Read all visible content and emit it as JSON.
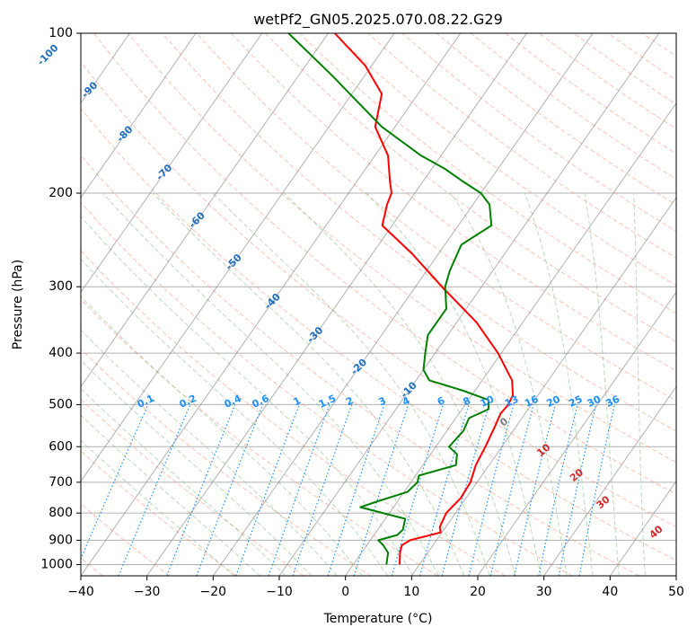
{
  "chart_data": {
    "type": "line",
    "title": "wetPf2_GN05.2025.070.08.22.G29",
    "xlabel": "Temperature (°C)",
    "ylabel": "Pressure (hPa)",
    "xlim": [
      -40,
      50
    ],
    "ylim": [
      1050,
      100
    ],
    "y_scale": "log",
    "x_ticks": [
      -40,
      -30,
      -20,
      -10,
      0,
      10,
      20,
      30,
      40,
      50
    ],
    "x_tick_labels": [
      "−40",
      "−30",
      "−20",
      "−10",
      "0",
      "10",
      "20",
      "30",
      "40",
      "50"
    ],
    "y_ticks": [
      1000,
      900,
      800,
      700,
      600,
      500,
      400,
      300,
      200,
      100
    ],
    "y_tick_labels": [
      "1000",
      "900",
      "800",
      "700",
      "600",
      "500",
      "400",
      "300",
      "200",
      "100"
    ],
    "grid": true,
    "series": [
      {
        "name": "",
        "color": "#ff0000",
        "points": [
          [
            1000,
            7.0
          ],
          [
            950,
            5.8
          ],
          [
            920,
            5.3
          ],
          [
            900,
            6.0
          ],
          [
            870,
            9.8
          ],
          [
            850,
            9.1
          ],
          [
            800,
            8.6
          ],
          [
            750,
            9.2
          ],
          [
            700,
            9.0
          ],
          [
            650,
            8.0
          ],
          [
            600,
            7.5
          ],
          [
            550,
            6.8
          ],
          [
            520,
            6.3
          ],
          [
            500,
            6.5
          ],
          [
            480,
            6.2
          ],
          [
            450,
            4.5
          ],
          [
            400,
            -0.5
          ],
          [
            350,
            -7.0
          ],
          [
            300,
            -16.0
          ],
          [
            260,
            -24.0
          ],
          [
            230,
            -31.5
          ],
          [
            210,
            -33.0
          ],
          [
            200,
            -33.5
          ],
          [
            190,
            -35.0
          ],
          [
            170,
            -38.0
          ],
          [
            150,
            -43.0
          ],
          [
            130,
            -45.5
          ],
          [
            115,
            -51.0
          ],
          [
            100,
            -59.0
          ]
        ]
      },
      {
        "name": "",
        "color": "#008000",
        "points": [
          [
            1000,
            5.0
          ],
          [
            950,
            4.0
          ],
          [
            920,
            2.5
          ],
          [
            900,
            1.2
          ],
          [
            880,
            3.5
          ],
          [
            860,
            3.8
          ],
          [
            820,
            3.0
          ],
          [
            800,
            -1.0
          ],
          [
            780,
            -5.0
          ],
          [
            760,
            -3.0
          ],
          [
            730,
            0.5
          ],
          [
            700,
            1.0
          ],
          [
            680,
            0.5
          ],
          [
            650,
            5.0
          ],
          [
            620,
            4.0
          ],
          [
            600,
            2.0
          ],
          [
            560,
            2.5
          ],
          [
            530,
            2.0
          ],
          [
            510,
            4.0
          ],
          [
            490,
            3.0
          ],
          [
            470,
            -2.0
          ],
          [
            450,
            -8.0
          ],
          [
            430,
            -10.0
          ],
          [
            400,
            -11.5
          ],
          [
            370,
            -13.0
          ],
          [
            350,
            -13.0
          ],
          [
            330,
            -13.0
          ],
          [
            300,
            -15.5
          ],
          [
            280,
            -16.5
          ],
          [
            250,
            -17.5
          ],
          [
            230,
            -15.0
          ],
          [
            210,
            -17.5
          ],
          [
            200,
            -20.0
          ],
          [
            190,
            -24.0
          ],
          [
            180,
            -28.0
          ],
          [
            170,
            -33.0
          ],
          [
            150,
            -42.0
          ],
          [
            120,
            -55.0
          ],
          [
            100,
            -66.0
          ]
        ]
      }
    ],
    "isotherm_labels": [
      "-100",
      "-90",
      "-80",
      "-70",
      "-60",
      "-50",
      "-40",
      "-30",
      "-20",
      "-10"
    ],
    "mixing_ratio_labels": [
      "0.1",
      "0.2",
      "0.4",
      "0.6",
      "1",
      "1.5",
      "2",
      "3",
      "4",
      "6",
      "8",
      "10",
      "13",
      "16",
      "20",
      "25",
      "30",
      "36"
    ],
    "wet_adiabat_labels": [
      "0",
      "10",
      "20",
      "30",
      "40"
    ],
    "colors": {
      "temperature": "#ff0000",
      "dewpoint": "#008000",
      "isotherm": "#7f7f7f",
      "dry_adiabat": "#ff9070",
      "moist_adiabat": "#7fbf7f",
      "mixing_ratio": "#1e90ff",
      "isotherm_label": "#1f6fbf",
      "wet_label": "#d62728",
      "zero_label": "#808080"
    }
  }
}
